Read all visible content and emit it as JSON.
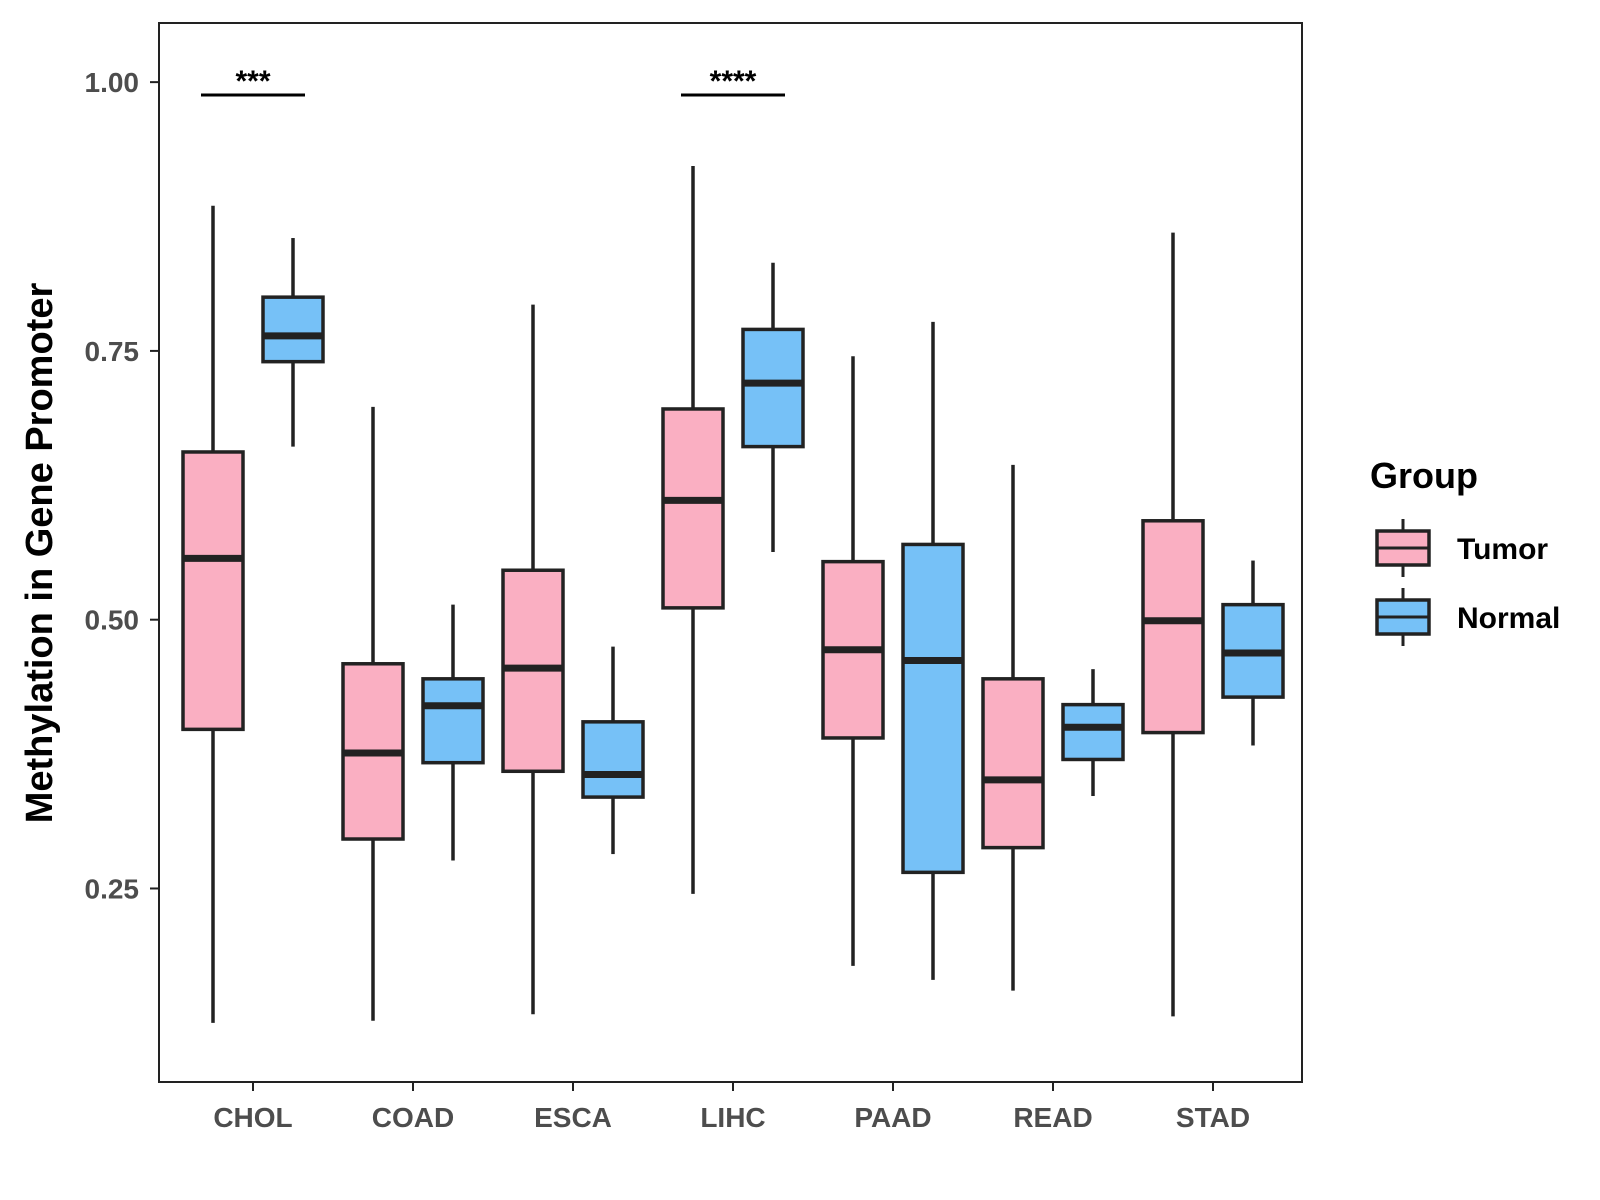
{
  "chart_data": {
    "type": "boxplot",
    "title": "",
    "xlabel": "",
    "ylabel": "Methylation in Gene Promoter",
    "ylim": [
      0.07,
      1.055
    ],
    "yticks": [
      0.25,
      0.5,
      0.75,
      1.0
    ],
    "ytick_labels": [
      "0.25",
      "0.50",
      "0.75",
      "1.00"
    ],
    "categories": [
      "CHOL",
      "COAD",
      "ESCA",
      "LIHC",
      "PAAD",
      "READ",
      "STAD"
    ],
    "legend": {
      "title": "Group",
      "position": "right",
      "entries": [
        {
          "name": "Tumor",
          "color": "#FAAFC2"
        },
        {
          "name": "Normal",
          "color": "#76C1F7"
        }
      ]
    },
    "series": [
      {
        "name": "Tumor",
        "color": "#FAAFC2",
        "boxes": [
          {
            "category": "CHOL",
            "min": 0.125,
            "q1": 0.398,
            "median": 0.557,
            "q3": 0.656,
            "max": 0.885
          },
          {
            "category": "COAD",
            "min": 0.127,
            "q1": 0.296,
            "median": 0.376,
            "q3": 0.459,
            "max": 0.698
          },
          {
            "category": "ESCA",
            "min": 0.133,
            "q1": 0.359,
            "median": 0.455,
            "q3": 0.546,
            "max": 0.793
          },
          {
            "category": "LIHC",
            "min": 0.245,
            "q1": 0.511,
            "median": 0.611,
            "q3": 0.696,
            "max": 0.922
          },
          {
            "category": "PAAD",
            "min": 0.178,
            "q1": 0.39,
            "median": 0.472,
            "q3": 0.554,
            "max": 0.745
          },
          {
            "category": "READ",
            "min": 0.155,
            "q1": 0.288,
            "median": 0.351,
            "q3": 0.445,
            "max": 0.644
          },
          {
            "category": "STAD",
            "min": 0.131,
            "q1": 0.395,
            "median": 0.499,
            "q3": 0.592,
            "max": 0.86
          }
        ]
      },
      {
        "name": "Normal",
        "color": "#76C1F7",
        "boxes": [
          {
            "category": "CHOL",
            "min": 0.661,
            "q1": 0.74,
            "median": 0.764,
            "q3": 0.8,
            "max": 0.855
          },
          {
            "category": "COAD",
            "min": 0.276,
            "q1": 0.367,
            "median": 0.42,
            "q3": 0.445,
            "max": 0.514
          },
          {
            "category": "ESCA",
            "min": 0.282,
            "q1": 0.335,
            "median": 0.356,
            "q3": 0.405,
            "max": 0.475
          },
          {
            "category": "LIHC",
            "min": 0.563,
            "q1": 0.661,
            "median": 0.72,
            "q3": 0.77,
            "max": 0.832
          },
          {
            "category": "PAAD",
            "min": 0.165,
            "q1": 0.265,
            "median": 0.462,
            "q3": 0.57,
            "max": 0.777
          },
          {
            "category": "READ",
            "min": 0.336,
            "q1": 0.37,
            "median": 0.4,
            "q3": 0.421,
            "max": 0.454
          },
          {
            "category": "STAD",
            "min": 0.383,
            "q1": 0.428,
            "median": 0.469,
            "q3": 0.514,
            "max": 0.555
          }
        ]
      }
    ],
    "annotations": [
      {
        "category": "CHOL",
        "label": "***",
        "y": 0.988
      },
      {
        "category": "LIHC",
        "label": "****",
        "y": 0.988
      }
    ]
  },
  "colors": {
    "tumor": "#FAAFC2",
    "normal": "#76C1F7",
    "outline": "#222222",
    "axis_text": "#4d4d4d"
  }
}
